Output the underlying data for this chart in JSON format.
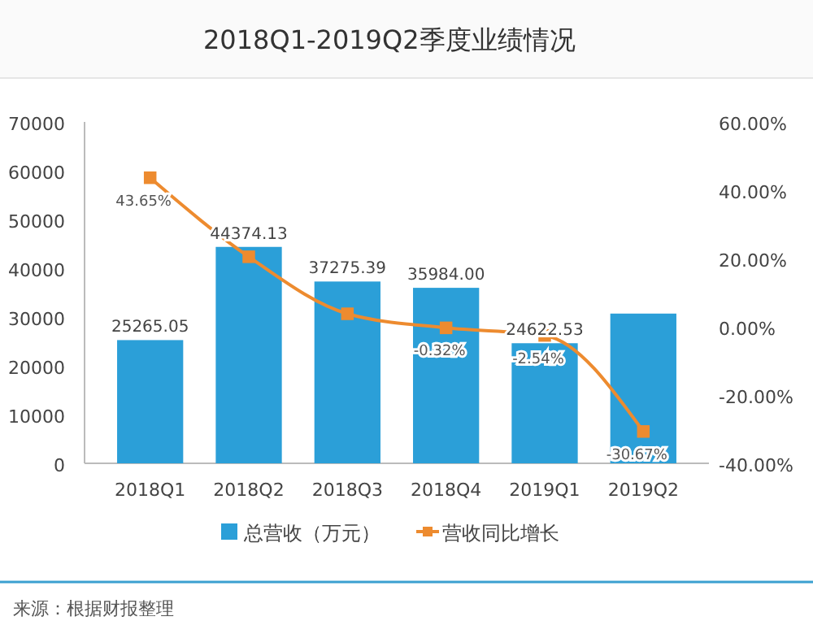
{
  "chart_data": {
    "type": "bar",
    "title": "2018Q1-2019Q2季度业绩情况",
    "categories": [
      "2018Q1",
      "2018Q2",
      "2018Q3",
      "2018Q4",
      "2019Q1",
      "2019Q2"
    ],
    "series": [
      {
        "name": "总营收（万元）",
        "color": "#2b9fd8",
        "values": [
          25265.05,
          44374.13,
          37275.39,
          35984.0,
          24622.53,
          30700
        ],
        "value_labels": [
          "25265.05",
          "44374.13",
          "37275.39",
          "35984.00",
          "24622.53",
          null
        ]
      },
      {
        "name": "营收同比增长",
        "type": "line",
        "axis": "y2",
        "color": "#ed8b2f",
        "values": [
          43.65,
          20.5,
          3.8,
          -0.32,
          -2.54,
          -30.67
        ],
        "value_labels": [
          "43.65%",
          null,
          null,
          "-0.32%",
          "-2.54%",
          "-30.67%"
        ]
      }
    ],
    "ylim": [
      0,
      70000
    ],
    "yticks": [
      0,
      10000,
      20000,
      30000,
      40000,
      50000,
      60000,
      70000
    ],
    "y2lim": [
      -40,
      60
    ],
    "y2ticks": [
      {
        "value": -40,
        "label": "-40.00%"
      },
      {
        "value": -20,
        "label": "-20.00%"
      },
      {
        "value": 0,
        "label": "0.00%"
      },
      {
        "value": 20,
        "label": "20.00%"
      },
      {
        "value": 40,
        "label": "40.00%"
      },
      {
        "value": 60,
        "label": "60.00%"
      }
    ],
    "marker": "square",
    "legend": "bottom",
    "grid": false,
    "annotations": [
      "来源：根据财报整理"
    ]
  }
}
